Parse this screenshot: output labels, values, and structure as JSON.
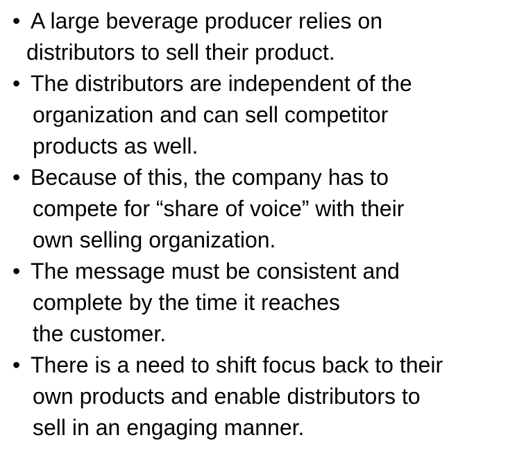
{
  "bullet_symbol": "•",
  "bullets": [
    {
      "lines": [
        "A large beverage producer relies on",
        "distributors to sell their product."
      ]
    },
    {
      "lines": [
        "The distributors are independent of the",
        "organization and can sell competitor",
        "products as well."
      ]
    },
    {
      "lines": [
        "Because of this, the company has to",
        "compete for “share of voice” with their",
        "own selling organization."
      ]
    },
    {
      "lines": [
        "The message must be consistent and",
        "complete by the time it reaches",
        "the customer."
      ]
    },
    {
      "lines": [
        "There is a need to shift focus back to their",
        "own products and enable distributors to",
        "sell in an engaging manner."
      ]
    }
  ]
}
